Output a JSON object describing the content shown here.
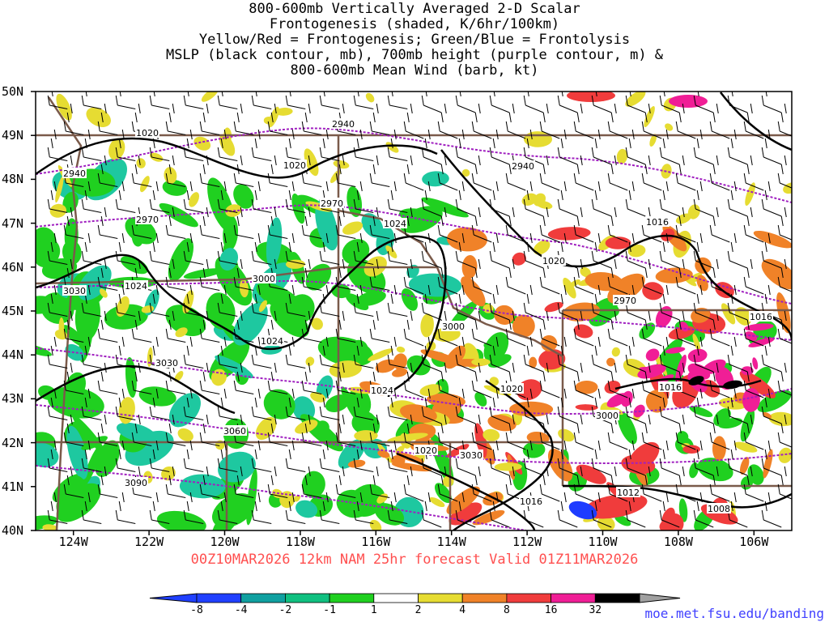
{
  "title": {
    "lines": [
      "800-600mb Vertically Averaged 2-D Scalar",
      "Frontogenesis (shaded, K/6hr/100km)",
      "Yellow/Red = Frontogenesis;  Green/Blue = Frontolysis",
      "MSLP (black contour, mb), 700mb height (purple contour, m) &",
      "800-600mb Mean Wind (barb, kt)"
    ]
  },
  "map": {
    "lat_labels": [
      "50N",
      "49N",
      "48N",
      "47N",
      "46N",
      "45N",
      "44N",
      "43N",
      "42N",
      "41N",
      "40N"
    ],
    "lon_labels": [
      "124W",
      "122W",
      "120W",
      "118W",
      "116W",
      "114W",
      "112W",
      "110W",
      "108W",
      "106W"
    ],
    "mslp_labels": [
      "1020",
      "1020",
      "1024",
      "1024",
      "1024",
      "1024",
      "1020",
      "1020",
      "1020",
      "1016",
      "1016",
      "1016",
      "1016",
      "1012",
      "1008"
    ],
    "height_labels": [
      "2940",
      "2940",
      "2940",
      "2970",
      "2970",
      "2970",
      "3000",
      "3000",
      "3000",
      "3030",
      "3030",
      "3030",
      "3060",
      "3090"
    ],
    "colors": {
      "mslp": "#000000",
      "height": "#a020c0",
      "border": "#7a5a4a",
      "frontolysis_strong": "#1e3cff",
      "frontolysis_med": "#1ec8a0",
      "frontolysis_weak": "#20d020",
      "frontogenesis_weak": "#e6dc32",
      "frontogenesis_med": "#f08228",
      "frontogenesis_strong": "#f03c3c",
      "frontogenesis_vstrong": "#f01e96"
    }
  },
  "valid_text": "00Z10MAR2026 12km NAM 25hr forecast Valid 01Z11MAR2026",
  "colorbar": {
    "labels": [
      "-8",
      "-4",
      "-2",
      "-1",
      "1",
      "2",
      "4",
      "8",
      "16",
      "32"
    ],
    "colors": [
      "#2040ff",
      "#10a0a0",
      "#10c080",
      "#20d020",
      "#ffffff",
      "#e6dc32",
      "#f08228",
      "#f03c3c",
      "#f01e96",
      "#000000"
    ],
    "ends": {
      "low": "#2040ff",
      "high": "#a0a0a0"
    }
  },
  "url": "moe.met.fsu.edu/banding"
}
